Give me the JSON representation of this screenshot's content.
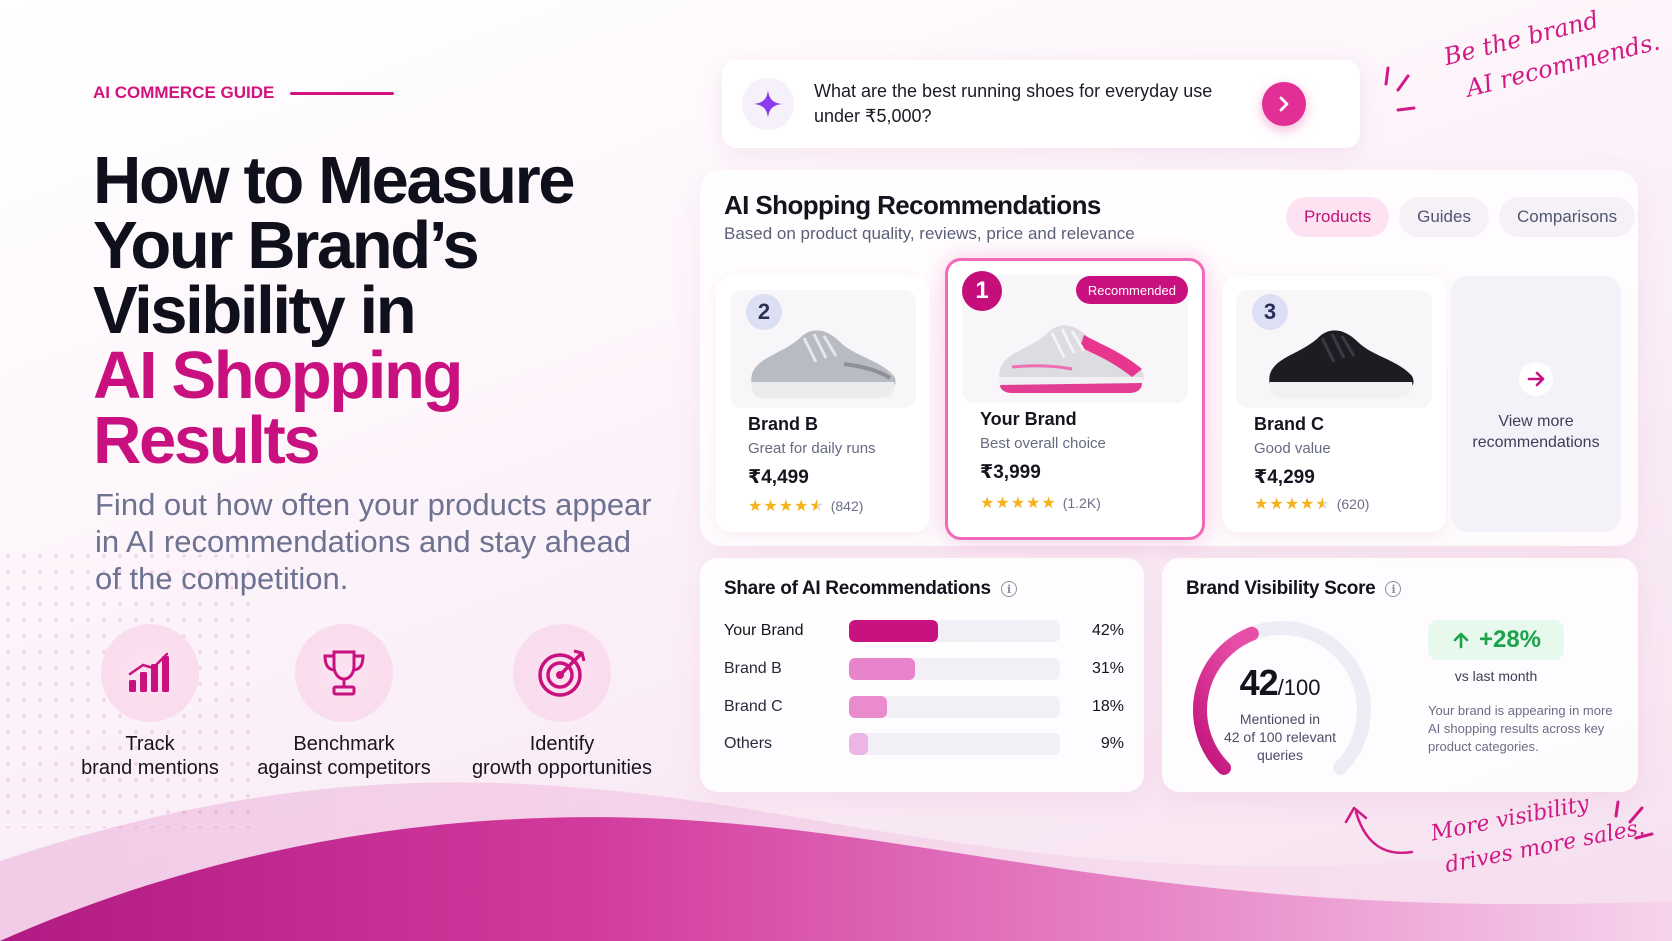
{
  "eyebrow": "AI COMMERCE GUIDE",
  "headline": {
    "line1": "How to Measure",
    "line2": "Your Brand’s",
    "line3": "Visibility in",
    "line4": "AI Shopping",
    "line5": "Results"
  },
  "subhead": "Find out how often your products appear in AI recommendations and stay ahead of the competition.",
  "features": [
    {
      "icon": "bar-chart-icon",
      "line1": "Track",
      "line2": "brand mentions"
    },
    {
      "icon": "trophy-icon",
      "line1": "Benchmark",
      "line2": "against competitors"
    },
    {
      "icon": "target-icon",
      "line1": "Identify",
      "line2": "growth opportunities"
    }
  ],
  "search": {
    "query": "What are the best running shoes for everyday use under ₹5,000?",
    "icon": "sparkle-icon"
  },
  "annotations": {
    "top_line1": "Be the brand",
    "top_line2": "AI recommends.",
    "bottom_line1": "More visibility",
    "bottom_line2": "drives more sales."
  },
  "recommendations": {
    "title": "AI Shopping Recommendations",
    "subtitle": "Based on product quality, reviews, price and relevance",
    "tabs": [
      {
        "label": "Products",
        "active": true
      },
      {
        "label": "Guides",
        "active": false
      },
      {
        "label": "Comparisons",
        "active": false
      }
    ],
    "products": [
      {
        "rank": "2",
        "brand": "Brand B",
        "tagline": "Great for daily runs",
        "price": "₹4,499",
        "rating": 4.5,
        "reviews": "(842)",
        "shoe_color": "grey"
      },
      {
        "rank": "1",
        "brand": "Your Brand",
        "tagline": "Best overall choice",
        "price": "₹3,999",
        "rating": 5,
        "reviews": "(1.2K)",
        "badge": "Recommended",
        "shoe_color": "pink"
      },
      {
        "rank": "3",
        "brand": "Brand C",
        "tagline": "Good value",
        "price": "₹4,299",
        "rating": 4.5,
        "reviews": "(620)",
        "shoe_color": "black"
      }
    ],
    "view_more_line1": "View more",
    "view_more_line2": "recommendations"
  },
  "share": {
    "title": "Share of AI Recommendations",
    "rows": [
      {
        "name": "Your Brand",
        "value": 42,
        "label": "42%",
        "color": "#c8127f"
      },
      {
        "name": "Brand B",
        "value": 31,
        "label": "31%",
        "color": "#e884cc"
      },
      {
        "name": "Brand C",
        "value": 18,
        "label": "18%",
        "color": "#ea8bd0"
      },
      {
        "name": "Others",
        "value": 9,
        "label": "9%",
        "color": "#ecb6e6"
      }
    ]
  },
  "score": {
    "title": "Brand Visibility Score",
    "value": 42,
    "value_label": "42",
    "denominator": "/100",
    "mention_line1": "Mentioned in",
    "mention_line2": "42 of 100 relevant",
    "mention_line3": "queries",
    "delta": "+28%",
    "delta_sub": "vs last month",
    "description": "Your brand is appearing in more AI shopping results across key product categories."
  },
  "colors": {
    "accent": "#c8117f",
    "accent_bright": "#e22f95",
    "positive": "#1aa34a"
  }
}
